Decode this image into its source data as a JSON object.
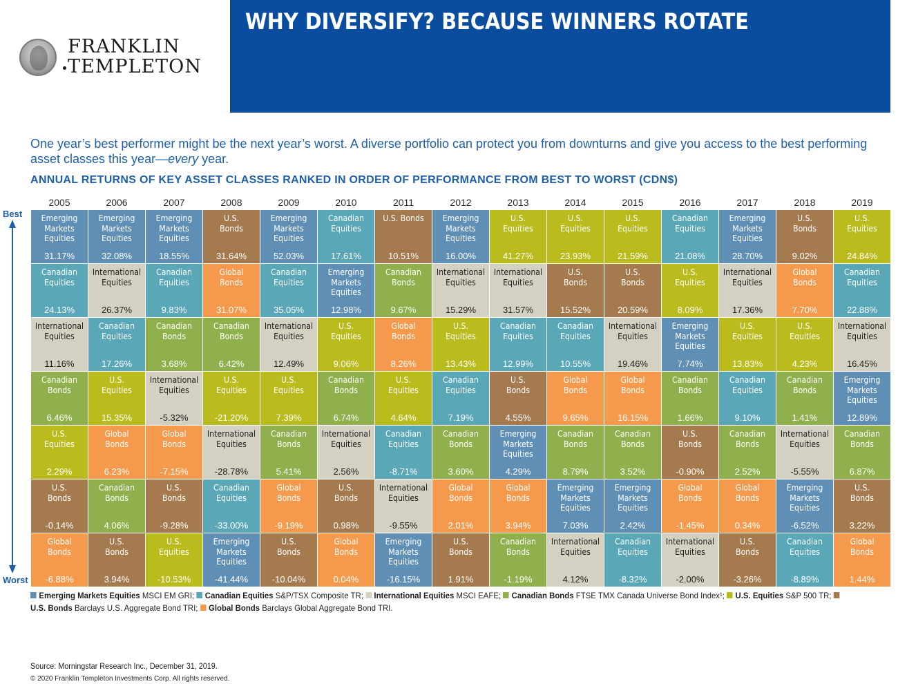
{
  "logo": {
    "line1": "FRANKLIN",
    "line2": "TEMPLETON"
  },
  "banner": {
    "title": "WHY DIVERSIFY? BECAUSE WINNERS ROTATE",
    "color": "#0a4d9e"
  },
  "intro": {
    "text_main": "One year’s best performer might be the next year’s worst. A diverse portfolio can protect you from downturns and give you access to the best performing asset classes this year—",
    "text_em": "every",
    "text_end": " year."
  },
  "heading": "ANNUAL RETURNS OF KEY ASSET CLASSES RANKED IN ORDER OF PERFORMANCE FROM BEST TO WORST (CDN$)",
  "axis": {
    "best": "Best",
    "worst": "Worst"
  },
  "colors": {
    "EM": "#5f8fb4",
    "CE": "#5aa7b7",
    "IE": "#d4d1c2",
    "CB": "#8fb04c",
    "UE": "#b9bc1c",
    "UB": "#a57a4f",
    "GB": "#f59a4c",
    "accent": "#1f5fa8"
  },
  "legend": [
    {
      "key": "EM",
      "name": "Emerging Markets Equities",
      "desc": "MSCI EM GRI; "
    },
    {
      "key": "CE",
      "name": "Canadian Equities",
      "desc": "S&P/TSX Composite TR; "
    },
    {
      "key": "IE",
      "name": "International Equities",
      "desc": "MSCI EAFE; "
    },
    {
      "key": "CB",
      "name": "Canadian Bonds",
      "desc": "FTSE TMX Canada Universe Bond Index¹; "
    },
    {
      "key": "UE",
      "name": "U.S. Equities",
      "desc": "S&P 500 TR; "
    },
    {
      "key": "UB",
      "name": "U.S. Bonds",
      "desc": "Barclays U.S. Aggregate Bond TRI; "
    },
    {
      "key": "GB",
      "name": "Global Bonds",
      "desc": "Barclays Global Aggregate Bond TRI."
    }
  ],
  "chart_data": {
    "type": "table",
    "title": "ANNUAL RETURNS OF KEY ASSET CLASSES RANKED IN ORDER OF PERFORMANCE FROM BEST TO WORST (CDN$)",
    "ylabel_top": "Best",
    "ylabel_bottom": "Worst",
    "asset_labels": {
      "EM": [
        "Emerging",
        "Markets",
        "Equities"
      ],
      "CE": [
        "Canadian",
        "Equities"
      ],
      "IE": [
        "International",
        "Equities"
      ],
      "CB": [
        "Canadian",
        "Bonds"
      ],
      "UE": [
        "U.S.",
        "Equities"
      ],
      "UB": [
        "U.S.",
        "Bonds"
      ],
      "GB": [
        "Global",
        "Bonds"
      ]
    },
    "years": [
      {
        "year": "2005",
        "ranks": [
          {
            "asset": "EM",
            "value": "31.17%"
          },
          {
            "asset": "CE",
            "value": "24.13%"
          },
          {
            "asset": "IE",
            "value": "11.16%"
          },
          {
            "asset": "CB",
            "value": "6.46%"
          },
          {
            "asset": "UE",
            "value": "2.29%"
          },
          {
            "asset": "UB",
            "value": "-0.14%"
          },
          {
            "asset": "GB",
            "value": "-6.88%"
          }
        ]
      },
      {
        "year": "2006",
        "ranks": [
          {
            "asset": "EM",
            "value": "32.08%"
          },
          {
            "asset": "IE",
            "value": "26.37%"
          },
          {
            "asset": "CE",
            "value": "17.26%"
          },
          {
            "asset": "UE",
            "value": "15.35%"
          },
          {
            "asset": "GB",
            "value": "6.23%"
          },
          {
            "asset": "CB",
            "value": "4.06%"
          },
          {
            "asset": "UB",
            "value": "3.94%"
          }
        ]
      },
      {
        "year": "2007",
        "ranks": [
          {
            "asset": "EM",
            "value": "18.55%"
          },
          {
            "asset": "CE",
            "value": "9.83%"
          },
          {
            "asset": "CB",
            "value": "3.68%"
          },
          {
            "asset": "IE",
            "value": "-5.32%"
          },
          {
            "asset": "GB",
            "value": "-7.15%"
          },
          {
            "asset": "UB",
            "value": "-9.28%"
          },
          {
            "asset": "UE",
            "value": "-10.53%"
          }
        ]
      },
      {
        "year": "2008",
        "ranks": [
          {
            "asset": "UB",
            "value": "31.64%"
          },
          {
            "asset": "GB",
            "value": "31.07%"
          },
          {
            "asset": "CB",
            "value": "6.42%"
          },
          {
            "asset": "UE",
            "value": "-21.20%"
          },
          {
            "asset": "IE",
            "value": "-28.78%"
          },
          {
            "asset": "CE",
            "value": "-33.00%"
          },
          {
            "asset": "EM",
            "value": "-41.44%"
          }
        ]
      },
      {
        "year": "2009",
        "ranks": [
          {
            "asset": "EM",
            "value": "52.03%"
          },
          {
            "asset": "CE",
            "value": "35.05%"
          },
          {
            "asset": "IE",
            "value": "12.49%"
          },
          {
            "asset": "UE",
            "value": "7.39%"
          },
          {
            "asset": "CB",
            "value": "5.41%"
          },
          {
            "asset": "GB",
            "value": "-9.19%"
          },
          {
            "asset": "UB",
            "value": "-10.04%"
          }
        ]
      },
      {
        "year": "2010",
        "ranks": [
          {
            "asset": "CE",
            "value": "17.61%"
          },
          {
            "asset": "EM",
            "value": "12.98%"
          },
          {
            "asset": "UE",
            "value": "9.06%"
          },
          {
            "asset": "CB",
            "value": "6.74%"
          },
          {
            "asset": "IE",
            "value": "2.56%"
          },
          {
            "asset": "UB",
            "value": "0.98%"
          },
          {
            "asset": "GB",
            "value": "0.04%"
          }
        ]
      },
      {
        "year": "2011",
        "ranks": [
          {
            "asset": "UB",
            "value": "10.51%",
            "inline": true
          },
          {
            "asset": "CB",
            "value": "9.67%"
          },
          {
            "asset": "GB",
            "value": "8.26%"
          },
          {
            "asset": "UE",
            "value": "4.64%"
          },
          {
            "asset": "CE",
            "value": "-8.71%"
          },
          {
            "asset": "IE",
            "value": "-9.55%"
          },
          {
            "asset": "EM",
            "value": "-16.15%"
          }
        ]
      },
      {
        "year": "2012",
        "ranks": [
          {
            "asset": "EM",
            "value": "16.00%"
          },
          {
            "asset": "IE",
            "value": "15.29%"
          },
          {
            "asset": "UE",
            "value": "13.43%"
          },
          {
            "asset": "CE",
            "value": "7.19%"
          },
          {
            "asset": "CB",
            "value": "3.60%"
          },
          {
            "asset": "GB",
            "value": "2.01%"
          },
          {
            "asset": "UB",
            "value": "1.91%"
          }
        ]
      },
      {
        "year": "2013",
        "ranks": [
          {
            "asset": "UE",
            "value": "41.27%"
          },
          {
            "asset": "IE",
            "value": "31.57%"
          },
          {
            "asset": "CE",
            "value": "12.99%"
          },
          {
            "asset": "UB",
            "value": "4.55%"
          },
          {
            "asset": "EM",
            "value": "4.29%"
          },
          {
            "asset": "GB",
            "value": "3.94%"
          },
          {
            "asset": "CB",
            "value": "-1.19%"
          }
        ]
      },
      {
        "year": "2014",
        "ranks": [
          {
            "asset": "UE",
            "value": "23.93%"
          },
          {
            "asset": "UB",
            "value": "15.52%"
          },
          {
            "asset": "CE",
            "value": "10.55%"
          },
          {
            "asset": "GB",
            "value": "9.65%"
          },
          {
            "asset": "CB",
            "value": "8.79%"
          },
          {
            "asset": "EM",
            "value": "7.03%"
          },
          {
            "asset": "IE",
            "value": "4.12%"
          }
        ]
      },
      {
        "year": "2015",
        "ranks": [
          {
            "asset": "UE",
            "value": "21.59%"
          },
          {
            "asset": "UB",
            "value": "20.59%"
          },
          {
            "asset": "IE",
            "value": "19.46%"
          },
          {
            "asset": "GB",
            "value": "16.15%"
          },
          {
            "asset": "CB",
            "value": "3.52%"
          },
          {
            "asset": "EM",
            "value": "2.42%"
          },
          {
            "asset": "CE",
            "value": "-8.32%"
          }
        ]
      },
      {
        "year": "2016",
        "ranks": [
          {
            "asset": "CE",
            "value": "21.08%"
          },
          {
            "asset": "UE",
            "value": "8.09%"
          },
          {
            "asset": "EM",
            "value": "7.74%"
          },
          {
            "asset": "CB",
            "value": "1.66%"
          },
          {
            "asset": "UB",
            "value": "-0.90%"
          },
          {
            "asset": "GB",
            "value": "-1.45%"
          },
          {
            "asset": "IE",
            "value": "-2.00%"
          }
        ]
      },
      {
        "year": "2017",
        "ranks": [
          {
            "asset": "EM",
            "value": "28.70%"
          },
          {
            "asset": "IE",
            "value": "17.36%"
          },
          {
            "asset": "UE",
            "value": "13.83%"
          },
          {
            "asset": "CE",
            "value": "9.10%"
          },
          {
            "asset": "CB",
            "value": "2.52%"
          },
          {
            "asset": "GB",
            "value": "0.34%"
          },
          {
            "asset": "UB",
            "value": "-3.26%"
          }
        ]
      },
      {
        "year": "2018",
        "ranks": [
          {
            "asset": "UB",
            "value": "9.02%"
          },
          {
            "asset": "GB",
            "value": "7.70%"
          },
          {
            "asset": "UE",
            "value": "4.23%"
          },
          {
            "asset": "CB",
            "value": "1.41%"
          },
          {
            "asset": "IE",
            "value": "-5.55%"
          },
          {
            "asset": "EM",
            "value": "-6.52%"
          },
          {
            "asset": "CE",
            "value": "-8.89%"
          }
        ]
      },
      {
        "year": "2019",
        "ranks": [
          {
            "asset": "UE",
            "value": "24.84%"
          },
          {
            "asset": "CE",
            "value": "22.88%"
          },
          {
            "asset": "IE",
            "value": "16.45%"
          },
          {
            "asset": "EM",
            "value": "12.89%"
          },
          {
            "asset": "CB",
            "value": "6.87%"
          },
          {
            "asset": "UB",
            "value": "3.22%"
          },
          {
            "asset": "GB",
            "value": "1.44%"
          }
        ]
      }
    ]
  },
  "footer": {
    "source": "Source: Morningstar Research Inc., December 31, 2019.",
    "copyright": "© 2020 Franklin Templeton Investments Corp. All rights reserved."
  }
}
